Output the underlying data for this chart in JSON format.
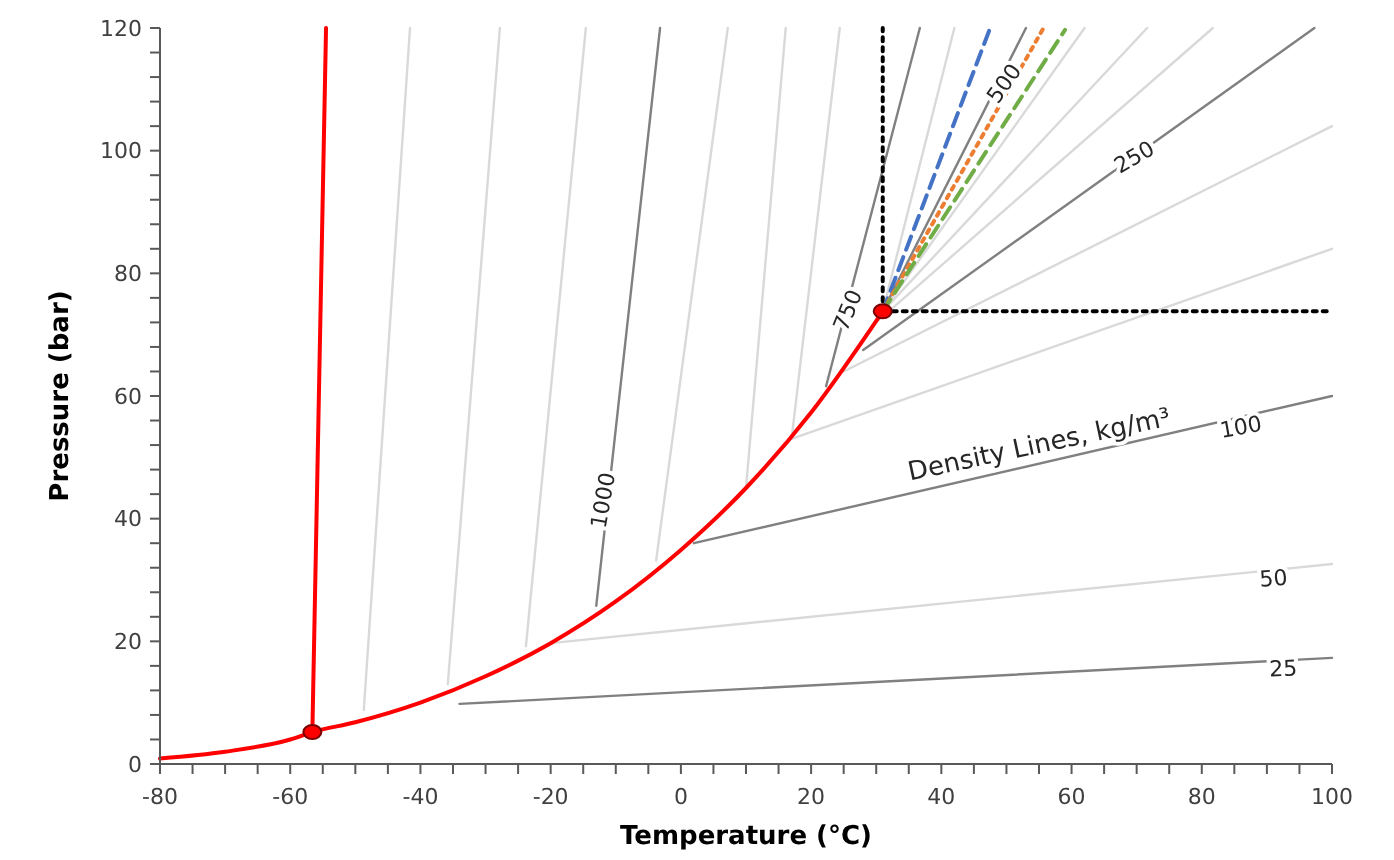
{
  "chart_data": {
    "type": "line",
    "xlabel": "Temperature (°C)",
    "ylabel": "Pressure (bar)",
    "xlim": [
      -80,
      100
    ],
    "ylim": [
      0,
      120
    ],
    "xticks": [
      -80,
      {
        "value": -75,
        "label": null
      },
      {
        "value": -70,
        "label": null
      },
      {
        "value": -65,
        "label": null
      },
      -60,
      {
        "value": -55,
        "label": null
      },
      {
        "value": -50,
        "label": null
      },
      {
        "value": -45,
        "label": null
      },
      -40,
      {
        "value": -35,
        "label": null
      },
      {
        "value": -30,
        "label": null
      },
      {
        "value": -25,
        "label": null
      },
      -20,
      {
        "value": -15,
        "label": null
      },
      {
        "value": -10,
        "label": null
      },
      {
        "value": -5,
        "label": null
      },
      0,
      {
        "value": 5,
        "label": null
      },
      {
        "value": 10,
        "label": null
      },
      {
        "value": 15,
        "label": null
      },
      20,
      {
        "value": 25,
        "label": null
      },
      {
        "value": 30,
        "label": null
      },
      {
        "value": 35,
        "label": null
      },
      40,
      {
        "value": 45,
        "label": null
      },
      {
        "value": 50,
        "label": null
      },
      {
        "value": 55,
        "label": null
      },
      60,
      {
        "value": 65,
        "label": null
      },
      {
        "value": 70,
        "label": null
      },
      {
        "value": 75,
        "label": null
      },
      80,
      {
        "value": 85,
        "label": null
      },
      {
        "value": 90,
        "label": null
      },
      {
        "value": 95,
        "label": null
      },
      100
    ],
    "yticks": [
      0,
      {
        "value": 4,
        "label": null
      },
      {
        "value": 8,
        "label": null
      },
      {
        "value": 12,
        "label": null
      },
      {
        "value": 16,
        "label": null
      },
      20,
      {
        "value": 24,
        "label": null
      },
      {
        "value": 28,
        "label": null
      },
      {
        "value": 32,
        "label": null
      },
      {
        "value": 36,
        "label": null
      },
      40,
      {
        "value": 44,
        "label": null
      },
      {
        "value": 48,
        "label": null
      },
      {
        "value": 52,
        "label": null
      },
      {
        "value": 56,
        "label": null
      },
      60,
      {
        "value": 64,
        "label": null
      },
      {
        "value": 68,
        "label": null
      },
      {
        "value": 72,
        "label": null
      },
      {
        "value": 76,
        "label": null
      },
      80,
      {
        "value": 84,
        "label": null
      },
      {
        "value": 88,
        "label": null
      },
      {
        "value": 92,
        "label": null
      },
      {
        "value": 96,
        "label": null
      },
      100,
      {
        "value": 104,
        "label": null
      },
      {
        "value": 108,
        "label": null
      },
      {
        "value": 112,
        "label": null
      },
      {
        "value": 116,
        "label": null
      },
      120
    ],
    "grid": false,
    "marker": "none",
    "line_style": "solid",
    "series": [
      {
        "type": "line",
        "color": "#d9d9d9",
        "x": [
          -48.7,
          -41.6
        ],
        "values": [
          8.8,
          120
        ]
      },
      {
        "type": "line",
        "color": "#d9d9d9",
        "x": [
          -35.8,
          -27.8
        ],
        "values": [
          13,
          120
        ]
      },
      {
        "type": "line",
        "color": "#d9d9d9",
        "x": [
          -23.8,
          -14.6
        ],
        "values": [
          19.2,
          120
        ]
      },
      {
        "type": "line",
        "color": "#d9d9d9",
        "x": [
          -3.8,
          7.2
        ],
        "values": [
          33.2,
          120
        ]
      },
      {
        "type": "line",
        "color": "#d9d9d9",
        "x": [
          10,
          16.1
        ],
        "values": [
          45,
          120
        ]
      },
      {
        "type": "line",
        "color": "#d9d9d9",
        "x": [
          17,
          24.4
        ],
        "values": [
          53,
          120
        ]
      },
      {
        "type": "line",
        "color": "#d9d9d9",
        "x": [
          31,
          42
        ],
        "values": [
          73.8,
          120
        ]
      },
      {
        "type": "line",
        "color": "#d9d9d9",
        "x": [
          31,
          62
        ],
        "values": [
          73.8,
          120
        ]
      },
      {
        "type": "line",
        "color": "#d9d9d9",
        "x": [
          31,
          71.6
        ],
        "values": [
          73.8,
          120
        ]
      },
      {
        "type": "line",
        "color": "#d9d9d9",
        "x": [
          30,
          81.7
        ],
        "values": [
          72,
          120
        ]
      },
      {
        "type": "line",
        "color": "#d9d9d9",
        "x": [
          25,
          100
        ],
        "values": [
          64,
          104
        ]
      },
      {
        "type": "line",
        "color": "#d9d9d9",
        "x": [
          17,
          100
        ],
        "values": [
          53,
          84
        ]
      },
      {
        "type": "line",
        "color": "#d9d9d9",
        "x": [
          -20,
          100
        ],
        "values": [
          19.7,
          32.6
        ]
      },
      {
        "type": "line",
        "color": "#808080",
        "x": [
          -13,
          -3.2
        ],
        "values": [
          25.8,
          120
        ]
      },
      {
        "type": "line",
        "color": "#808080",
        "x": [
          22.3,
          36.7
        ],
        "values": [
          61.6,
          120
        ]
      },
      {
        "type": "line",
        "color": "#808080",
        "x": [
          31,
          53
        ],
        "values": [
          73.8,
          120
        ]
      },
      {
        "type": "line",
        "color": "#808080",
        "x": [
          28,
          97.3
        ],
        "values": [
          67.5,
          120
        ]
      },
      {
        "type": "line",
        "color": "#808080",
        "x": [
          2,
          100
        ],
        "values": [
          36,
          60
        ]
      },
      {
        "type": "line",
        "color": "#808080",
        "x": [
          -34,
          100
        ],
        "values": [
          9.8,
          17.3
        ]
      },
      {
        "type": "line",
        "color": "#000000",
        "line_style": "dotted",
        "x": [
          31,
          31
        ],
        "values": [
          73.8,
          120
        ]
      },
      {
        "type": "line",
        "color": "#000000",
        "line_style": "dotted",
        "x": [
          31,
          100
        ],
        "values": [
          73.8,
          73.8
        ]
      },
      {
        "type": "line",
        "color": "#4472c4",
        "line_style": "dashed",
        "x": [
          31,
          47.5
        ],
        "values": [
          73.8,
          120
        ]
      },
      {
        "type": "line",
        "color": "#ed7d31",
        "line_style": "dotted",
        "x": [
          31,
          55.7
        ],
        "values": [
          73.8,
          120
        ]
      },
      {
        "type": "line",
        "color": "#70ad47",
        "line_style": "dashed",
        "x": [
          31,
          59
        ],
        "values": [
          73.8,
          119.7
        ]
      },
      {
        "color": "#ff0000",
        "x": [
          -80,
          -70,
          -60,
          -56.6,
          -50,
          -40,
          -30,
          -20,
          -10,
          0,
          10,
          20,
          31
        ],
        "values": [
          0.9,
          2,
          4,
          5.2,
          6.8,
          10,
          14.3,
          19.7,
          26.5,
          34.9,
          45,
          57.3,
          73.8
        ]
      },
      {
        "color": "#ff0000",
        "x": [
          -56.6,
          -54.5
        ],
        "values": [
          5.2,
          120
        ]
      },
      {
        "type": "scatter",
        "marker": "circle",
        "color": "#ff0000",
        "x": [
          -56.6,
          31
        ],
        "values": [
          5.2,
          73.8
        ]
      }
    ],
    "annotations": [
      {
        "text": "1000",
        "x": -12,
        "y": 43
      },
      {
        "text": "750",
        "x": 25.6,
        "y": 74
      },
      {
        "text": "500",
        "x": 49.6,
        "y": 111
      },
      {
        "text": "250",
        "x": 69.6,
        "y": 99
      },
      "Density Lines, kg/m³",
      {
        "text": "100",
        "x": 86,
        "y": 55
      },
      {
        "text": "50",
        "x": 91,
        "y": 30.3
      },
      {
        "text": "25",
        "x": 92.5,
        "y": 15.6
      }
    ]
  }
}
